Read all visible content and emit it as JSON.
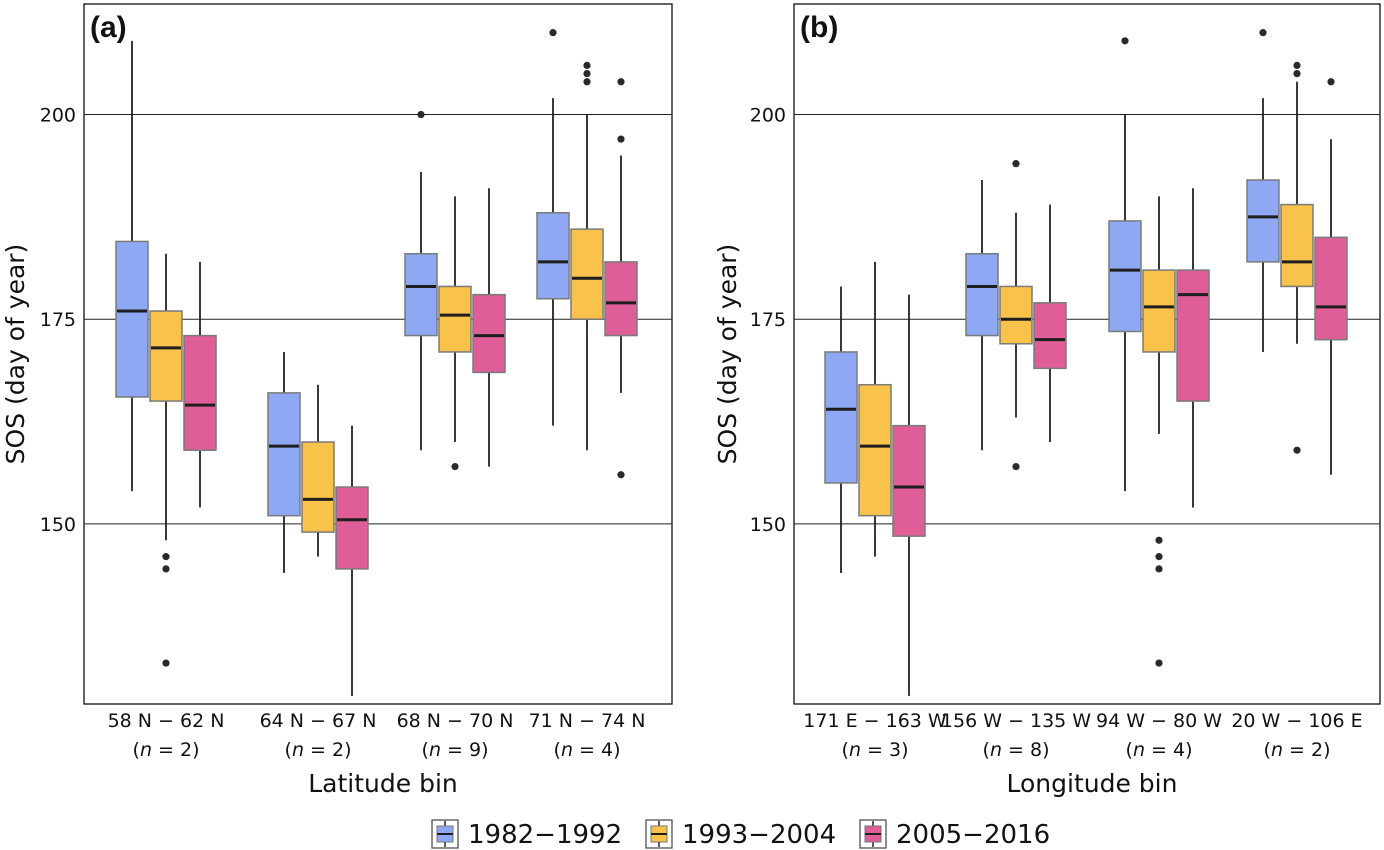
{
  "figure": {
    "legend": [
      {
        "label": "1982−1992",
        "color": "#8fa8f4"
      },
      {
        "label": "1993−2004",
        "color": "#f9c24a"
      },
      {
        "label": "2005−2016",
        "color": "#df5e98"
      }
    ]
  },
  "chart_data": [
    {
      "type": "box",
      "panel_label": "(a)",
      "ylabel": "SOS (day of year)",
      "xlabel": "Latitude bin",
      "ylim": [
        128,
        213.5
      ],
      "yticks": [
        150,
        175,
        200
      ],
      "grid": "horizontal at ticks",
      "categories": [
        {
          "label": "58  N − 62  N",
          "n_prefix": "(",
          "n_symbol": "n",
          "n_suffix": " = 2)"
        },
        {
          "label": "64  N − 67  N",
          "n_prefix": "(",
          "n_symbol": "n",
          "n_suffix": " = 2)"
        },
        {
          "label": "68  N − 70  N",
          "n_prefix": "(",
          "n_symbol": "n",
          "n_suffix": " = 9)"
        },
        {
          "label": "71  N − 74  N",
          "n_prefix": "(",
          "n_symbol": "n",
          "n_suffix": " = 4)"
        }
      ],
      "series": [
        {
          "name": "1982−1992",
          "color": "#8fa8f4",
          "boxes": [
            {
              "whisker_low": 154,
              "q1": 165.5,
              "median": 176,
              "q3": 184.5,
              "whisker_high": 209,
              "outliers": []
            },
            {
              "whisker_low": 144,
              "q1": 151,
              "median": 159.5,
              "q3": 166,
              "whisker_high": 171,
              "outliers": []
            },
            {
              "whisker_low": 159,
              "q1": 173,
              "median": 179,
              "q3": 183,
              "whisker_high": 193,
              "outliers": [
                200
              ]
            },
            {
              "whisker_low": 162,
              "q1": 177.5,
              "median": 182,
              "q3": 188,
              "whisker_high": 202,
              "outliers": [
                210
              ]
            }
          ]
        },
        {
          "name": "1993−2004",
          "color": "#f9c24a",
          "boxes": [
            {
              "whisker_low": 148,
              "q1": 165,
              "median": 171.5,
              "q3": 176,
              "whisker_high": 183,
              "outliers": [
                146,
                144.5,
                133
              ]
            },
            {
              "whisker_low": 146,
              "q1": 149,
              "median": 153,
              "q3": 160,
              "whisker_high": 167,
              "outliers": []
            },
            {
              "whisker_low": 160,
              "q1": 171,
              "median": 175.5,
              "q3": 179,
              "whisker_high": 190,
              "outliers": [
                157
              ]
            },
            {
              "whisker_low": 159,
              "q1": 175,
              "median": 180,
              "q3": 186,
              "whisker_high": 200,
              "outliers": [
                204,
                205,
                206
              ]
            }
          ]
        },
        {
          "name": "2005−2016",
          "color": "#df5e98",
          "boxes": [
            {
              "whisker_low": 152,
              "q1": 159,
              "median": 164.5,
              "q3": 173,
              "whisker_high": 182,
              "outliers": []
            },
            {
              "whisker_low": 129,
              "q1": 144.5,
              "median": 150.5,
              "q3": 154.5,
              "whisker_high": 162,
              "outliers": []
            },
            {
              "whisker_low": 157,
              "q1": 168.5,
              "median": 173,
              "q3": 178,
              "whisker_high": 191,
              "outliers": []
            },
            {
              "whisker_low": 166,
              "q1": 173,
              "median": 177,
              "q3": 182,
              "whisker_high": 195,
              "outliers": [
                197,
                204,
                156
              ]
            }
          ]
        }
      ]
    },
    {
      "type": "box",
      "panel_label": "(b)",
      "ylabel": "SOS (day of year)",
      "xlabel": "Longitude bin",
      "ylim": [
        128,
        213.5
      ],
      "yticks": [
        150,
        175,
        200
      ],
      "grid": "horizontal at ticks",
      "categories": [
        {
          "label": "171  E − 163  W",
          "n_prefix": "(",
          "n_symbol": "n",
          "n_suffix": " = 3)"
        },
        {
          "label": "156  W − 135  W",
          "n_prefix": "(",
          "n_symbol": "n",
          "n_suffix": " = 8)"
        },
        {
          "label": "94  W − 80  W",
          "n_prefix": "(",
          "n_symbol": "n",
          "n_suffix": " = 4)"
        },
        {
          "label": "20  W − 106  E",
          "n_prefix": "(",
          "n_symbol": "n",
          "n_suffix": " = 2)"
        }
      ],
      "series": [
        {
          "name": "1982−1992",
          "color": "#8fa8f4",
          "boxes": [
            {
              "whisker_low": 144,
              "q1": 155,
              "median": 164,
              "q3": 171,
              "whisker_high": 179,
              "outliers": []
            },
            {
              "whisker_low": 159,
              "q1": 173,
              "median": 179,
              "q3": 183,
              "whisker_high": 192,
              "outliers": []
            },
            {
              "whisker_low": 154,
              "q1": 173.5,
              "median": 181,
              "q3": 187,
              "whisker_high": 200,
              "outliers": [
                209
              ]
            },
            {
              "whisker_low": 171,
              "q1": 182,
              "median": 187.5,
              "q3": 192,
              "whisker_high": 202,
              "outliers": [
                210
              ]
            }
          ]
        },
        {
          "name": "1993−2004",
          "color": "#f9c24a",
          "boxes": [
            {
              "whisker_low": 146,
              "q1": 151,
              "median": 159.5,
              "q3": 167,
              "whisker_high": 182,
              "outliers": []
            },
            {
              "whisker_low": 163,
              "q1": 172,
              "median": 175,
              "q3": 179,
              "whisker_high": 188,
              "outliers": [
                194,
                157
              ]
            },
            {
              "whisker_low": 161,
              "q1": 171,
              "median": 176.5,
              "q3": 181,
              "whisker_high": 190,
              "outliers": [
                148,
                146,
                144.5,
                133
              ]
            },
            {
              "whisker_low": 172,
              "q1": 179,
              "median": 182,
              "q3": 189,
              "whisker_high": 204,
              "outliers": [
                205,
                206,
                159
              ]
            }
          ]
        },
        {
          "name": "2005−2016",
          "color": "#df5e98",
          "boxes": [
            {
              "whisker_low": 129,
              "q1": 148.5,
              "median": 154.5,
              "q3": 162,
              "whisker_high": 178,
              "outliers": []
            },
            {
              "whisker_low": 160,
              "q1": 169,
              "median": 172.5,
              "q3": 177,
              "whisker_high": 189,
              "outliers": []
            },
            {
              "whisker_low": 152,
              "q1": 165,
              "median": 178,
              "q3": 181,
              "whisker_high": 191,
              "outliers": []
            },
            {
              "whisker_low": 156,
              "q1": 172.5,
              "median": 176.5,
              "q3": 185,
              "whisker_high": 197,
              "outliers": [
                204
              ]
            }
          ]
        }
      ]
    }
  ]
}
